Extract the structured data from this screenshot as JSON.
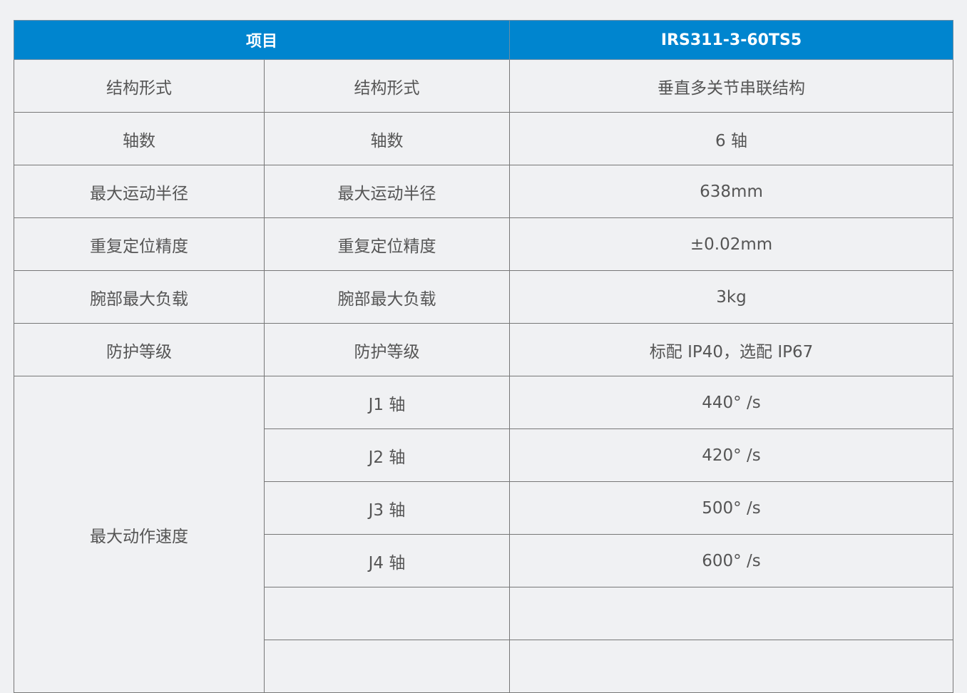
{
  "header": {
    "item": "项目",
    "model": "IRS311-3-60TS5"
  },
  "rows": [
    {
      "category": "结构形式",
      "name": "结构形式",
      "value": "垂直多关节串联结构"
    },
    {
      "category": "轴数",
      "name": "轴数",
      "value": "6 轴"
    },
    {
      "category": "最大运动半径",
      "name": "最大运动半径",
      "value": "638mm"
    },
    {
      "category": "重复定位精度",
      "name": "重复定位精度",
      "value": "±0.02mm"
    },
    {
      "category": "腕部最大负载",
      "name": "腕部最大负载",
      "value": "3kg"
    },
    {
      "category": "防护等级",
      "name": "防护等级",
      "value": "标配 IP40，选配 IP67"
    }
  ],
  "speed": {
    "category": "最大动作速度",
    "axes": [
      {
        "name": "J1 轴",
        "value": "440° /s"
      },
      {
        "name": "J2 轴",
        "value": "420° /s"
      },
      {
        "name": "J3 轴",
        "value": "500° /s"
      },
      {
        "name": "J4 轴",
        "value": "600° /s"
      }
    ]
  }
}
